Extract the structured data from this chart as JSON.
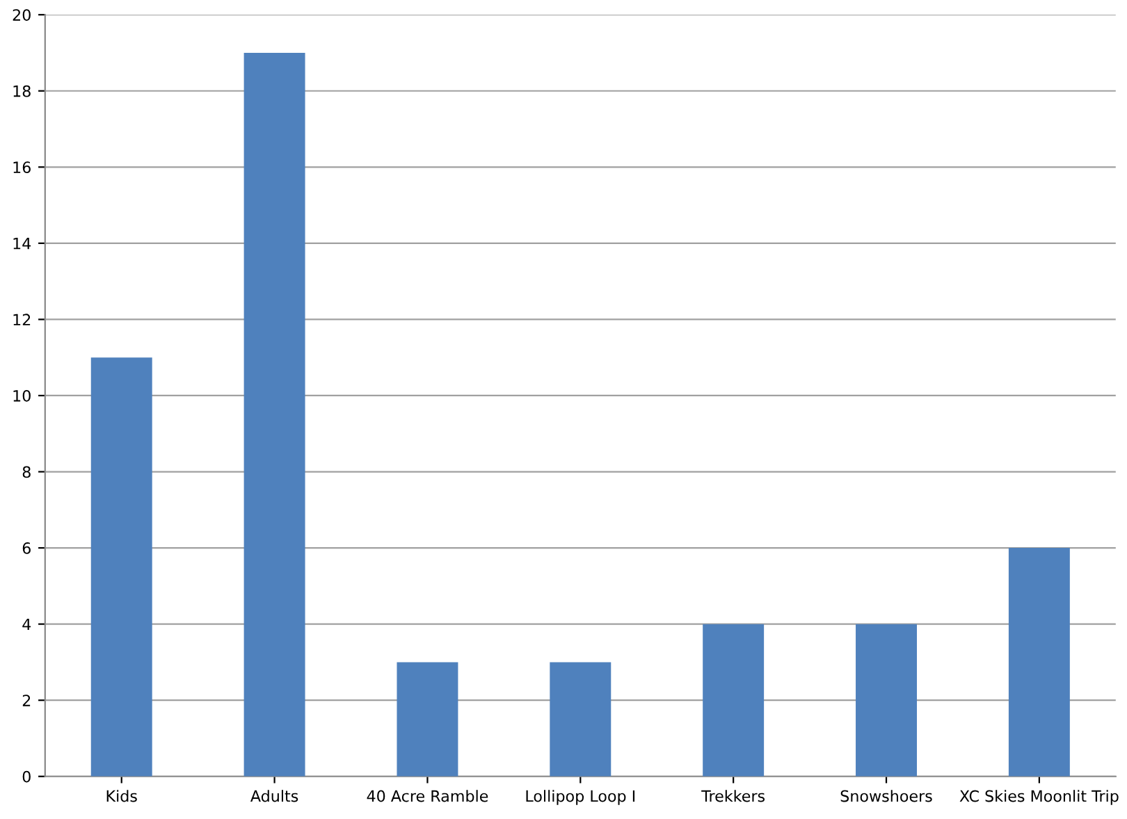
{
  "chart_data": {
    "type": "bar",
    "categories": [
      "Kids",
      "Adults",
      "40 Acre Ramble",
      "Lollipop Loop I",
      "Trekkers",
      "Snowshoers",
      "XC Skies Moonlit Trip"
    ],
    "values": [
      11,
      19,
      3,
      3,
      4,
      4,
      6
    ],
    "color": "#4f81bd",
    "ylim": [
      0,
      20
    ],
    "yticks": [
      0,
      2,
      4,
      6,
      8,
      10,
      12,
      14,
      16,
      18,
      20
    ],
    "grid": "y"
  }
}
